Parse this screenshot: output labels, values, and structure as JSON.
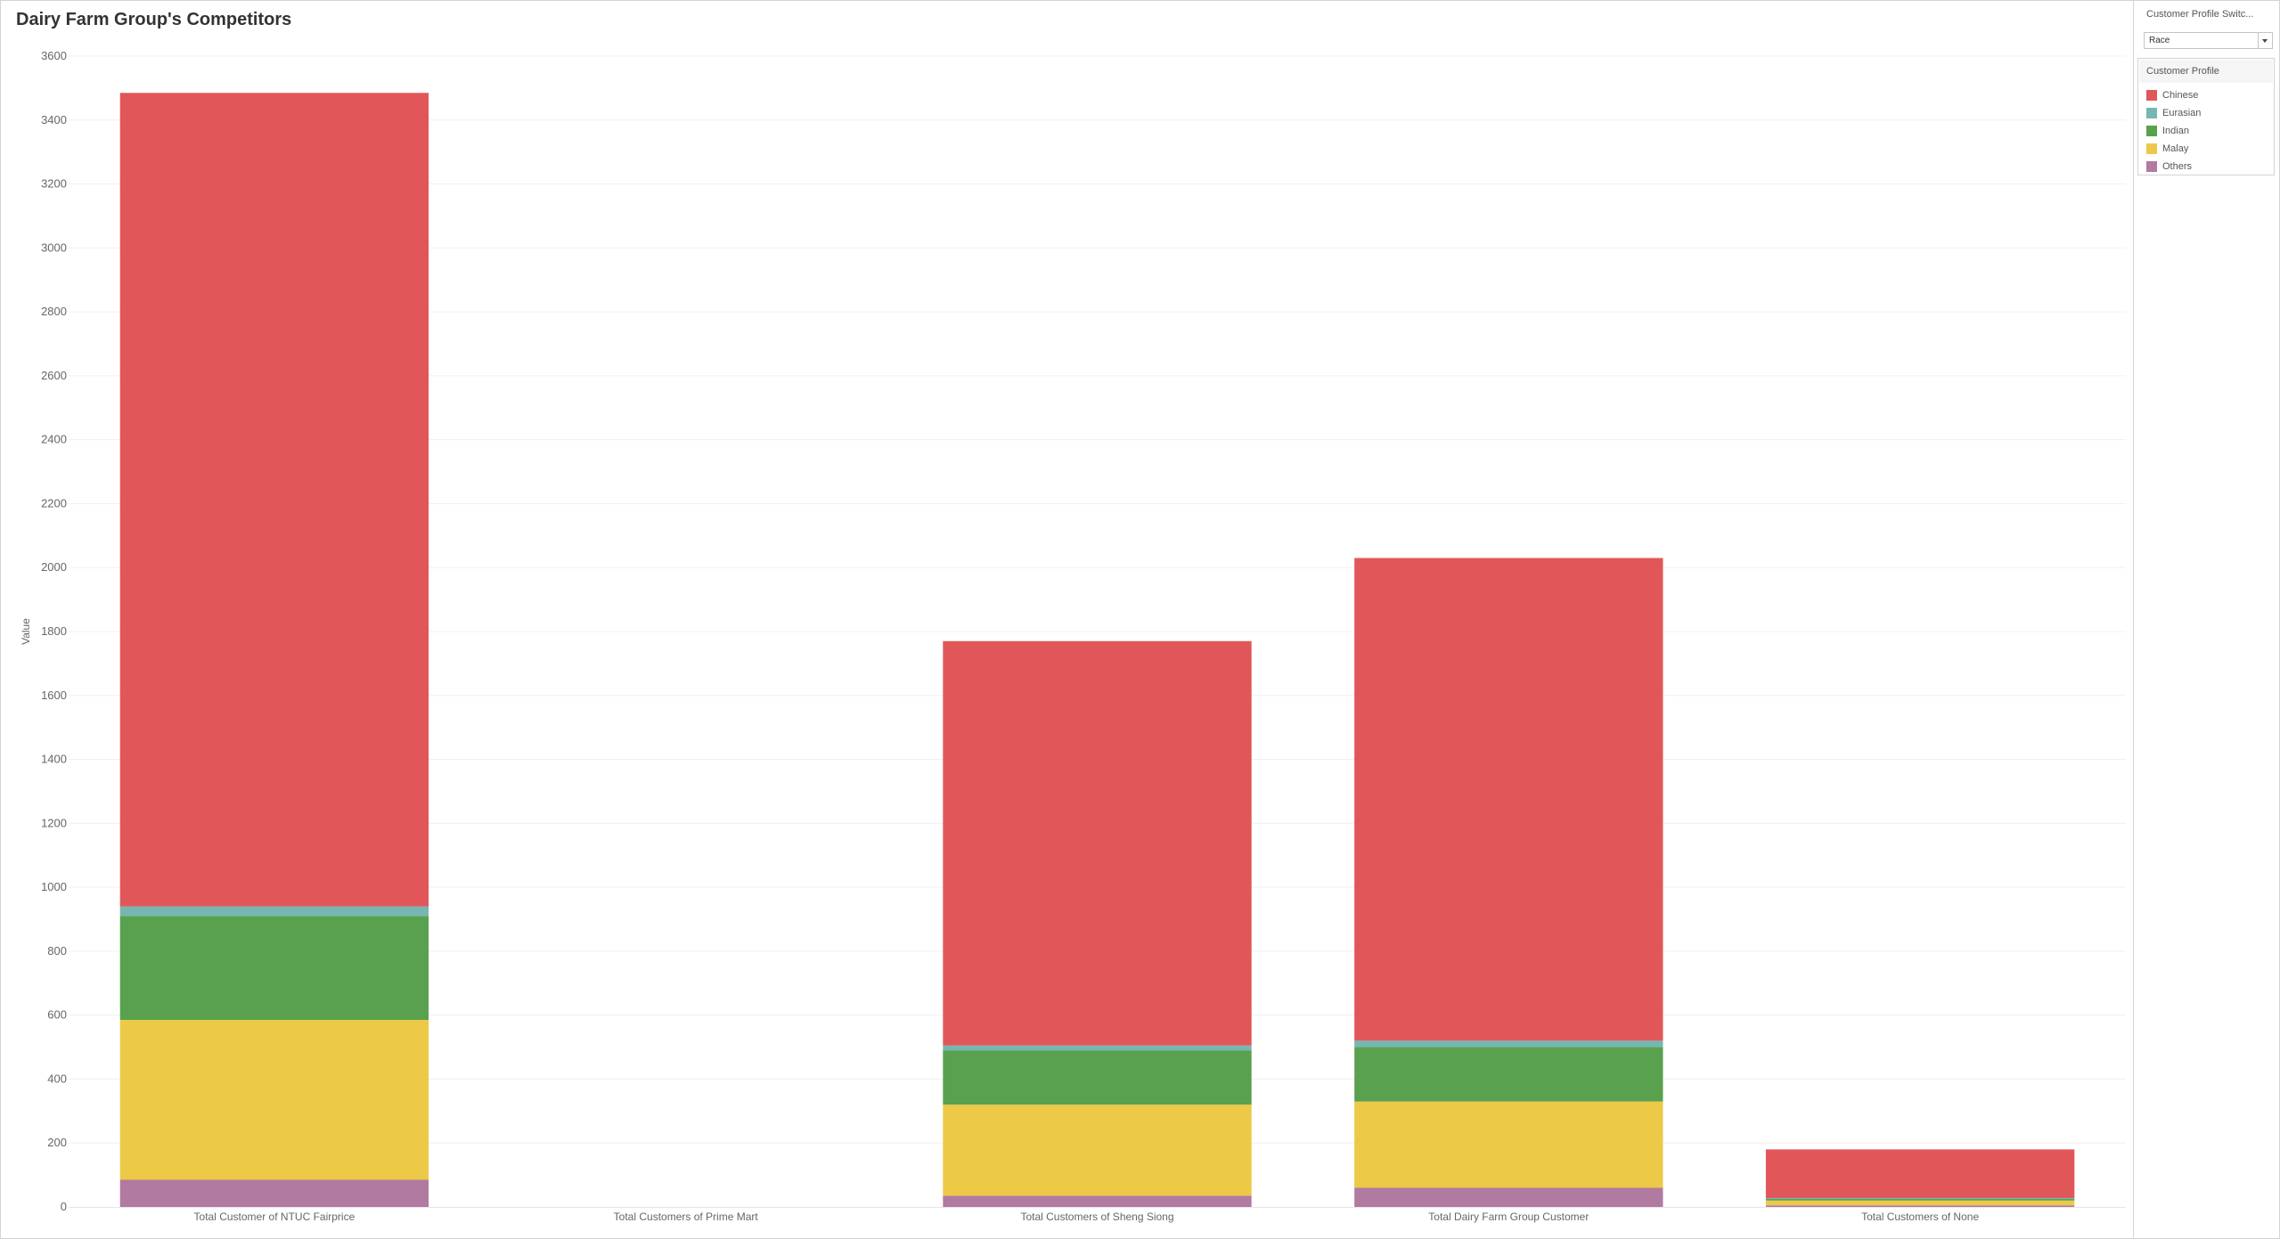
{
  "dashboard": {
    "title": "Dairy Farm Group's Competitors"
  },
  "parameter": {
    "title": "Customer Profile Switc...",
    "selected": "Race"
  },
  "legend": {
    "title": "Customer Profile",
    "items": [
      {
        "label": "Chinese",
        "color": "#e15759"
      },
      {
        "label": "Eurasian",
        "color": "#76b7b2"
      },
      {
        "label": "Indian",
        "color": "#59a14f"
      },
      {
        "label": "Malay",
        "color": "#edc948"
      },
      {
        "label": "Others",
        "color": "#b07aa1"
      }
    ]
  },
  "chart_data": {
    "type": "bar",
    "stacked": true,
    "title": "Dairy Farm Group's Competitors",
    "xlabel": "",
    "ylabel": "Value",
    "ylim": [
      0,
      3600
    ],
    "yticks": [
      0,
      200,
      400,
      600,
      800,
      1000,
      1200,
      1400,
      1600,
      1800,
      2000,
      2200,
      2400,
      2600,
      2800,
      3000,
      3200,
      3400,
      3600
    ],
    "grid": true,
    "legend_position": "right",
    "categories": [
      "Total Customer of NTUC Fairprice",
      "Total Customers of Prime Mart",
      "Total Customers of Sheng Siong",
      "Total Dairy Farm Group Customer",
      "Total Customers of None"
    ],
    "series": [
      {
        "name": "Others",
        "color": "#b07aa1",
        "values": [
          85,
          0,
          35,
          60,
          5
        ]
      },
      {
        "name": "Malay",
        "color": "#edc948",
        "values": [
          500,
          0,
          285,
          270,
          15
        ]
      },
      {
        "name": "Indian",
        "color": "#59a14f",
        "values": [
          325,
          0,
          170,
          170,
          5
        ]
      },
      {
        "name": "Eurasian",
        "color": "#76b7b2",
        "values": [
          30,
          0,
          15,
          20,
          3
        ]
      },
      {
        "name": "Chinese",
        "color": "#e15759",
        "values": [
          2545,
          0,
          1265,
          1510,
          152
        ]
      }
    ]
  }
}
